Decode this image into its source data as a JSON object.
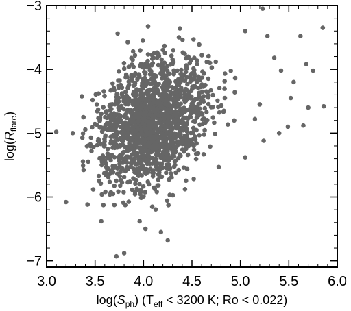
{
  "chart_data": {
    "type": "scatter",
    "title": "",
    "xlabel": {
      "prefix": "log(",
      "var": "S",
      "var_sub": "ph",
      "middle": ") (T",
      "t_sub": "eff",
      "suffix": " < 3200 K; Ro < 0.022)"
    },
    "ylabel": {
      "prefix": "log(",
      "var": "R",
      "var_sub": "flare",
      "suffix": ")"
    },
    "xlim": [
      3.0,
      6.0
    ],
    "ylim": [
      -7.1,
      -3.0
    ],
    "xticks": [
      3.0,
      3.5,
      4.0,
      4.5,
      5.0,
      5.5,
      6.0
    ],
    "xtick_labels": [
      "3.0",
      "3.5",
      "4.0",
      "4.5",
      "5.0",
      "5.5",
      "6.0"
    ],
    "yticks": [
      -3,
      -4,
      -5,
      -6,
      -7
    ],
    "ytick_labels": [
      "−3",
      "−4",
      "−5",
      "−6",
      "−7"
    ],
    "grid": false,
    "marker_color": "#666666",
    "outliers": [
      [
        5.23,
        -3.05
      ],
      [
        5.05,
        -3.4
      ],
      [
        5.28,
        -3.48
      ],
      [
        5.62,
        -3.48
      ],
      [
        5.85,
        -3.35
      ],
      [
        5.35,
        -3.82
      ],
      [
        5.68,
        -3.92
      ],
      [
        5.42,
        -4.02
      ],
      [
        5.75,
        -4.02
      ],
      [
        5.55,
        -4.2
      ],
      [
        5.2,
        -4.55
      ],
      [
        5.52,
        -4.45
      ],
      [
        5.7,
        -4.6
      ],
      [
        5.86,
        -4.58
      ],
      [
        5.15,
        -4.78
      ],
      [
        5.49,
        -4.9
      ],
      [
        5.65,
        -4.88
      ],
      [
        5.4,
        -5.0
      ],
      [
        5.24,
        -5.12
      ],
      [
        5.05,
        -5.38
      ],
      [
        3.1,
        -4.98
      ],
      [
        3.2,
        -6.08
      ],
      [
        3.27,
        -5.0
      ],
      [
        3.72,
        -6.93
      ],
      [
        3.8,
        -6.88
      ],
      [
        4.25,
        -6.68
      ],
      [
        4.18,
        -6.55
      ],
      [
        4.02,
        -6.5
      ],
      [
        3.96,
        -6.38
      ]
    ],
    "bulk": {
      "n": 1650,
      "x_mean": 4.08,
      "x_sd": 0.28,
      "x_range": [
        3.35,
        5.0
      ],
      "y_mean": -4.85,
      "y_sd": 0.5,
      "y_range": [
        -6.6,
        -3.3
      ],
      "correlation": 0.28,
      "seed": 20240615
    }
  }
}
